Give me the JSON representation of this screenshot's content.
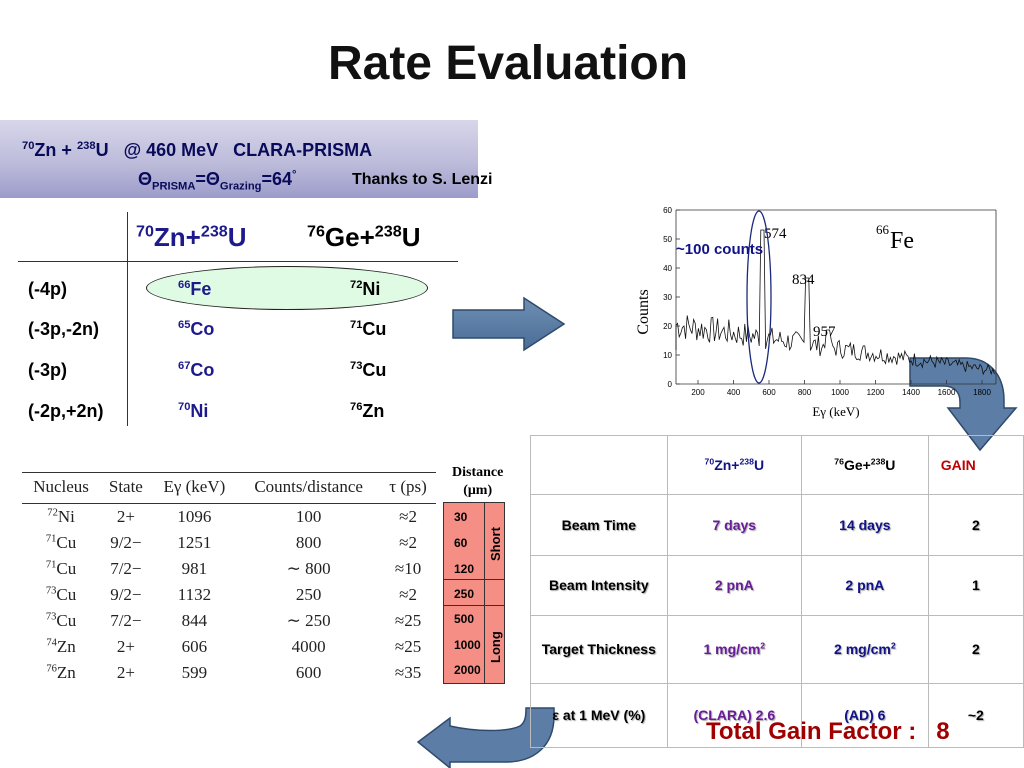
{
  "title": "Rate Evaluation",
  "banner": {
    "z1": "70",
    "e1": "Zn + ",
    "z2": "238",
    "e2": "U",
    "rest": "   @ 460 MeV   CLARA-PRISMA",
    "theta": "Θ",
    "sub1": "PRISMA",
    "eq": "=Θ",
    "sub2": "Grazing",
    "angle": "=64",
    "deg": "°"
  },
  "thanks": "Thanks to S. Lenzi",
  "reactions": {
    "header1": {
      "a": "70",
      "b": "Zn+",
      "c": "238",
      "d": "U"
    },
    "header2": {
      "a": "76",
      "b": "Ge+",
      "c": "238",
      "d": "U"
    },
    "rows": [
      {
        "channel": "(-4p)",
        "n1": "66",
        "e1": "Fe",
        "n2": "72",
        "e2": "Ni"
      },
      {
        "channel": "(-3p,-2n)",
        "n1": "65",
        "e1": "Co",
        "n2": "71",
        "e2": "Cu"
      },
      {
        "channel": "(-3p)",
        "n1": "67",
        "e1": "Co",
        "n2": "73",
        "e2": "Cu"
      },
      {
        "channel": "(-2p,+2n)",
        "n1": "70",
        "e1": "Ni",
        "n2": "76",
        "e2": "Zn"
      }
    ]
  },
  "spectrum": {
    "nucleus_mass": "66",
    "nucleus_el": "Fe",
    "ylabel": "Counts",
    "xlabel": "Eγ (keV)",
    "yticks": [
      "60",
      "50",
      "40",
      "30",
      "20",
      "10",
      "0"
    ],
    "xticks": [
      "200",
      "400",
      "600",
      "800",
      "1000",
      "1200",
      "1400",
      "1600",
      "1800"
    ],
    "peaks": [
      "574",
      "834",
      "957"
    ],
    "annotation": "~100 counts"
  },
  "nucleus_table": {
    "headers": [
      "Nucleus",
      "State",
      "Eγ (keV)",
      "Counts/distance",
      "τ (ps)"
    ],
    "rows": [
      {
        "mass": "72",
        "el": "Ni",
        "state": "2+",
        "e": "1096",
        "counts": "100",
        "tau": "≈2"
      },
      {
        "mass": "71",
        "el": "Cu",
        "state": "9/2−",
        "e": "1251",
        "counts": "800",
        "tau": "≈2"
      },
      {
        "mass": "71",
        "el": "Cu",
        "state": "7/2−",
        "e": "981",
        "counts": "∼ 800",
        "tau": "≈10"
      },
      {
        "mass": "73",
        "el": "Cu",
        "state": "9/2−",
        "e": "1132",
        "counts": "250",
        "tau": "≈2"
      },
      {
        "mass": "73",
        "el": "Cu",
        "state": "7/2−",
        "e": "844",
        "counts": "∼ 250",
        "tau": "≈25"
      },
      {
        "mass": "74",
        "el": "Zn",
        "state": "2+",
        "e": "606",
        "counts": "4000",
        "tau": "≈25"
      },
      {
        "mass": "76",
        "el": "Zn",
        "state": "2+",
        "e": "599",
        "counts": "600",
        "tau": "≈35"
      }
    ]
  },
  "distance": {
    "label1": "Distance",
    "label2": "(μm)",
    "values": [
      "30",
      "60",
      "120",
      "250",
      "500",
      "1000",
      "2000"
    ],
    "short": "Short",
    "long": "Long"
  },
  "gain_table": {
    "h1": {
      "a": "70",
      "b": "Zn+",
      "c": "238",
      "d": "U"
    },
    "h2": {
      "a": "76",
      "b": "Ge+",
      "c": "238",
      "d": "U"
    },
    "gain": "GAIN",
    "rows": [
      {
        "label": "Beam Time",
        "v1": "7 days",
        "v2": "14 days",
        "g": "2"
      },
      {
        "label": "Beam Intensity",
        "v1": "2 pnA",
        "v2": "2 pnA",
        "g": "1"
      },
      {
        "label": "Target Thickness",
        "v1": "1 mg/cm",
        "v2": "2 mg/cm",
        "sup": "2",
        "g": "2"
      },
      {
        "label": "ε at 1 MeV (%)",
        "v1": "(CLARA) 2.6",
        "v2": "(AD) 6",
        "g": "~2"
      }
    ]
  },
  "total": "Total Gain Factor :   8"
}
